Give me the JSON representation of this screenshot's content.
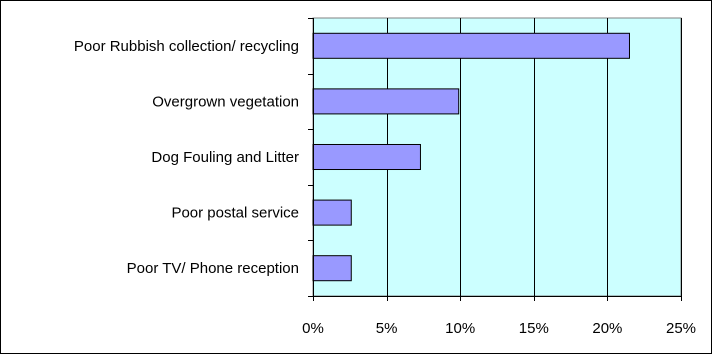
{
  "chart_data": {
    "type": "bar",
    "orientation": "horizontal",
    "title": "",
    "xlabel": "",
    "ylabel": "",
    "categories": [
      "Poor Rubbish collection/ recycling",
      "Overgrown vegetation",
      "Dog Fouling and Litter",
      "Poor postal service",
      "Poor TV/ Phone reception"
    ],
    "values": [
      0.215,
      0.099,
      0.073,
      0.026,
      0.026
    ],
    "xlim": [
      0,
      0.25
    ],
    "x_ticks": [
      0,
      0.05,
      0.1,
      0.15,
      0.2,
      0.25
    ],
    "x_tick_labels": [
      "0%",
      "5%",
      "10%",
      "15%",
      "20%",
      "25%"
    ],
    "grid": "vertical major gridlines",
    "legend": "none",
    "colors": {
      "plot_background": "#CCFFFF",
      "bar_fill": "#9999FF",
      "bar_stroke": "#000000",
      "gridline": "#000000"
    }
  }
}
